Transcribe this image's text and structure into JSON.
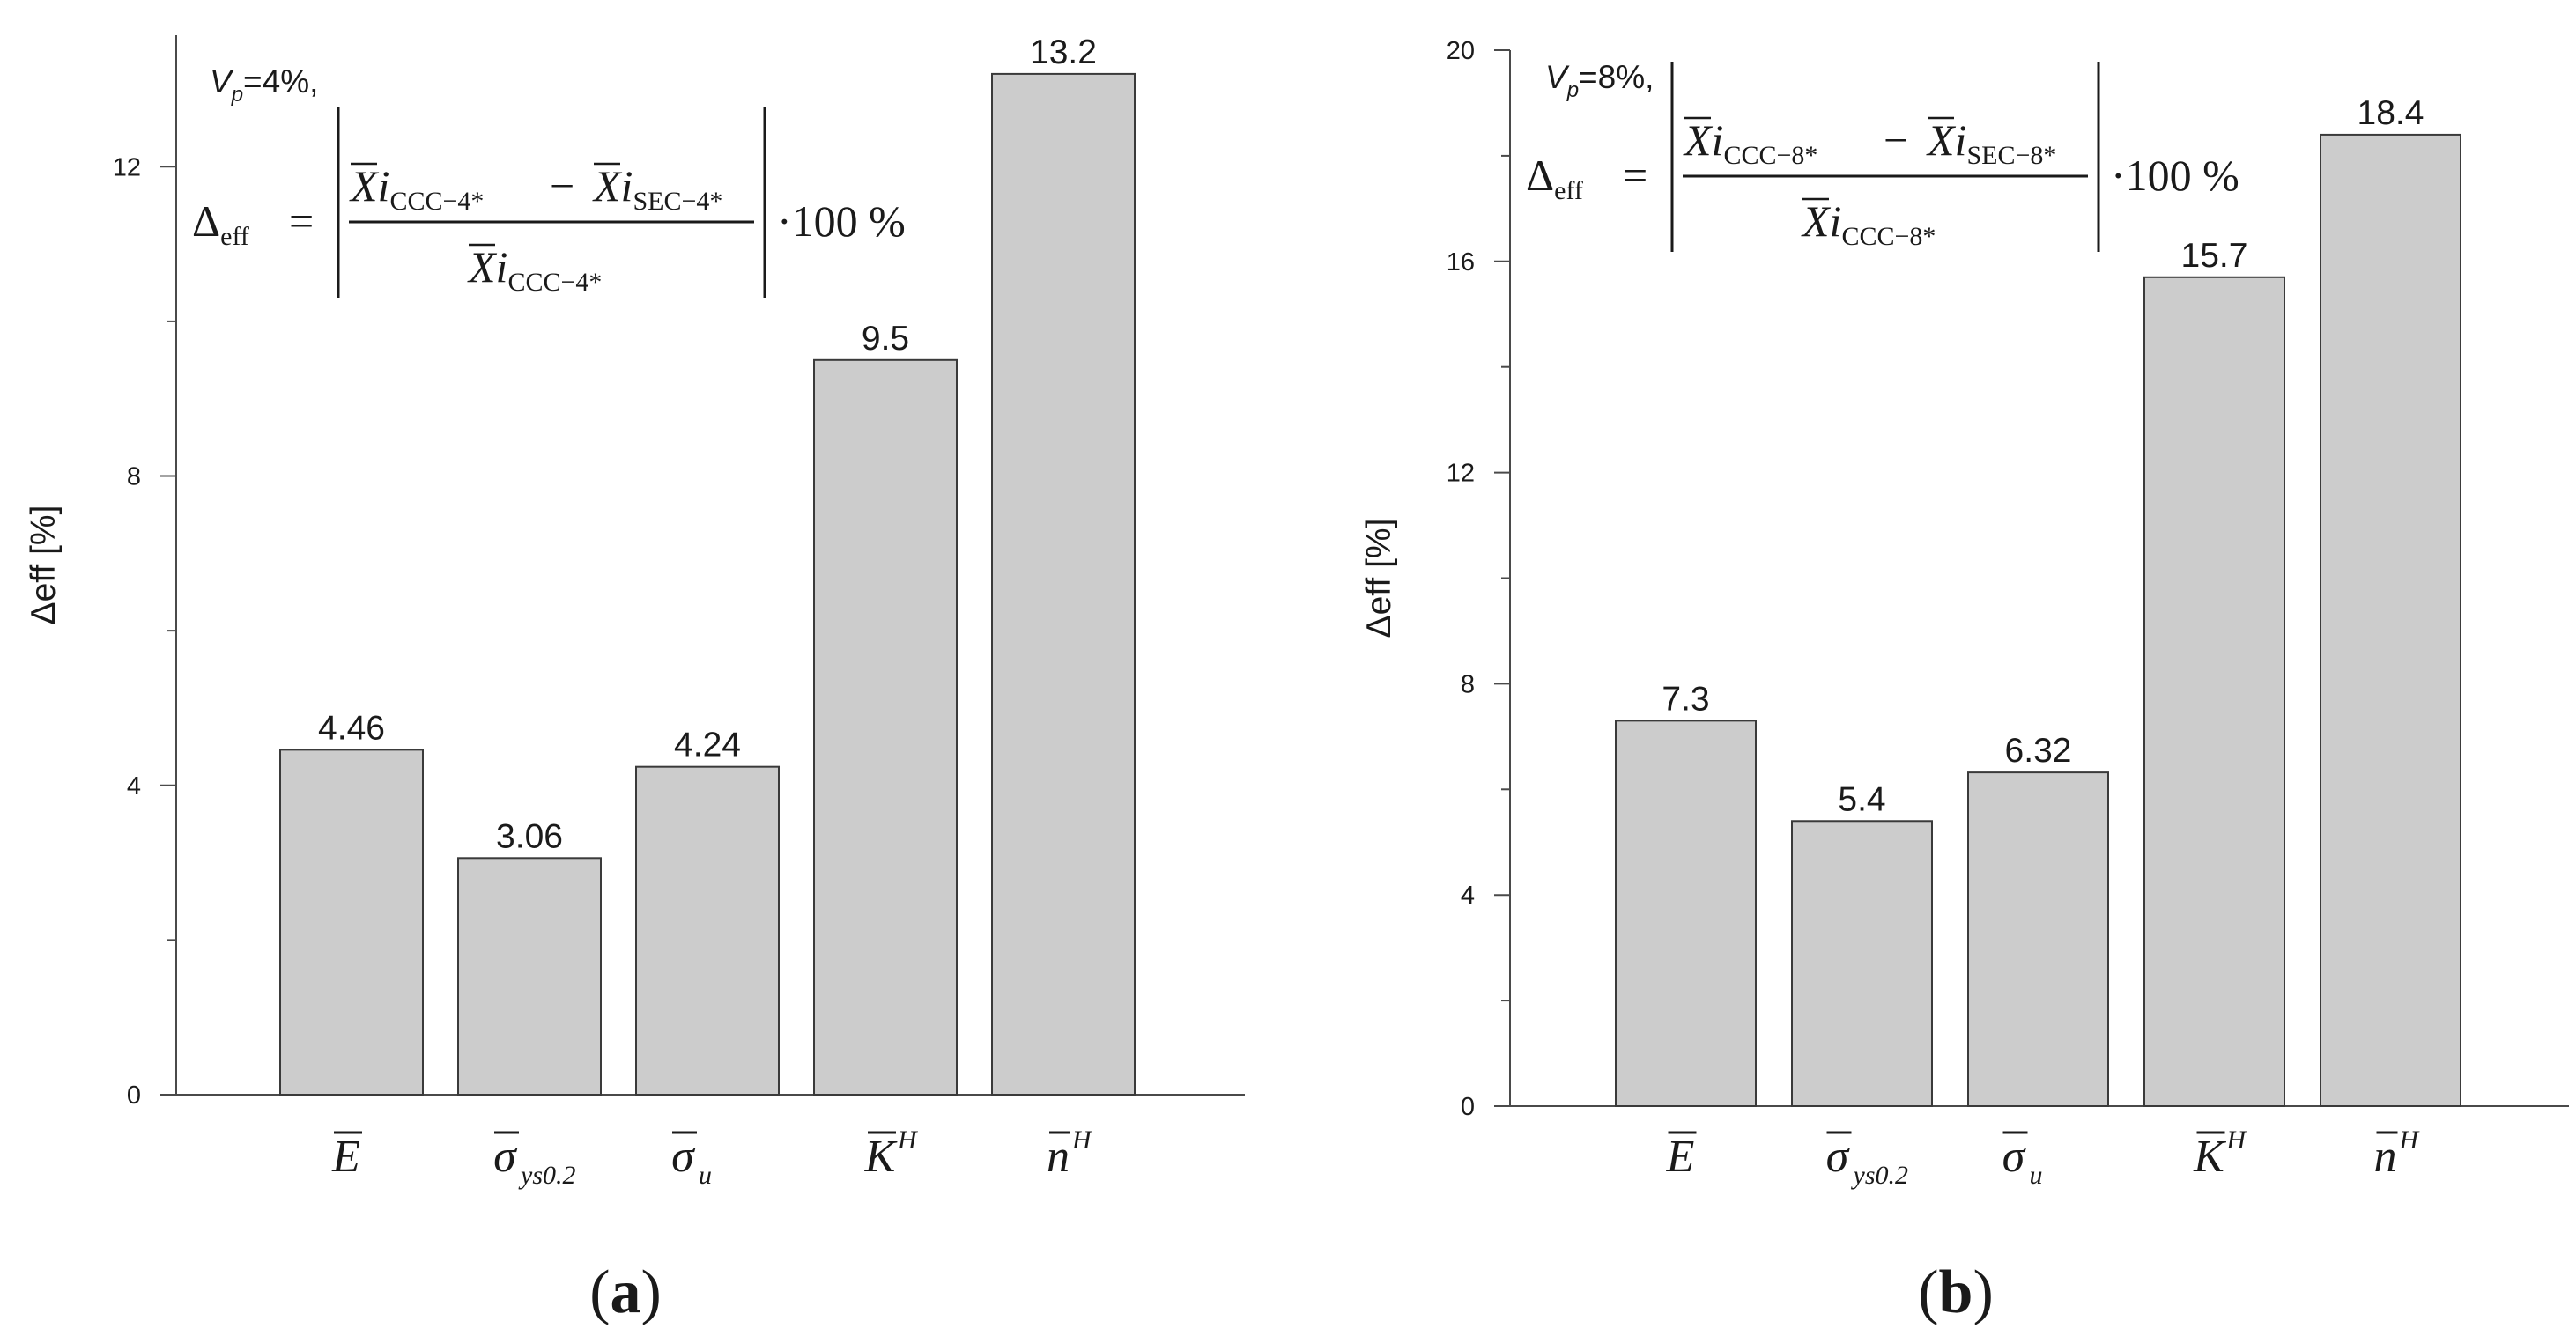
{
  "chart_data": [
    {
      "type": "bar",
      "panel_label": "a",
      "categories": [
        "E",
        "σ_ys0.2",
        "σ_u",
        "K^H",
        "n^H"
      ],
      "values": [
        4.46,
        3.06,
        4.24,
        9.5,
        13.2
      ],
      "value_labels": [
        "4.46",
        "3.06",
        "4.24",
        "9.5",
        "13.2"
      ],
      "ylabel": "Δeff [%]",
      "ylabel_delta": "Δ",
      "ylabel_rest": "eff [%]",
      "ylim": [
        0,
        13.7
      ],
      "yticks": [
        0,
        4,
        8,
        12
      ],
      "ytick_labels": [
        "0",
        "4",
        "8",
        "12"
      ],
      "annotation": {
        "vp_symbol": "V",
        "vp_sub": "p",
        "vp_value": "=4%,",
        "delta": "Δ",
        "delta_sub": "eff",
        "equals": "=",
        "xi": "Xi",
        "minus": "−",
        "num_left_sub": "CCC−4*",
        "num_right_sub": "SEC−4*",
        "den_sub": "CCC−4*",
        "factor": "·100 %"
      }
    },
    {
      "type": "bar",
      "panel_label": "b",
      "categories": [
        "E",
        "σ_ys0.2",
        "σ_u",
        "K^H",
        "n^H"
      ],
      "values": [
        7.3,
        5.4,
        6.32,
        15.7,
        18.4
      ],
      "value_labels": [
        "7.3",
        "5.4",
        "6.32",
        "15.7",
        "18.4"
      ],
      "ylabel": "Δeff [%]",
      "ylabel_delta": "Δ",
      "ylabel_rest": "eff [%]",
      "ylim": [
        0,
        20
      ],
      "yticks": [
        0,
        4,
        8,
        12,
        16,
        20
      ],
      "ytick_labels": [
        "0",
        "4",
        "8",
        "12",
        "16",
        "20"
      ],
      "annotation": {
        "vp_symbol": "V",
        "vp_sub": "p",
        "vp_value": "=8%,",
        "delta": "Δ",
        "delta_sub": "eff",
        "equals": "=",
        "xi": "Xi",
        "minus": "−",
        "num_left_sub": "CCC−8*",
        "num_right_sub": "SEC−8*",
        "den_sub": "CCC−8*",
        "factor": "·100 %"
      }
    }
  ],
  "category_symbols": [
    {
      "base": "E",
      "sub": "",
      "sup": "",
      "greek": false
    },
    {
      "base": "σ",
      "sub": "ys0.2",
      "sup": "",
      "greek": true
    },
    {
      "base": "σ",
      "sub": "u",
      "sup": "",
      "greek": true
    },
    {
      "base": "K",
      "sub": "",
      "sup": "H",
      "greek": false
    },
    {
      "base": "n",
      "sub": "",
      "sup": "H",
      "greek": false
    }
  ],
  "colors": {
    "bar_fill": "#cccccc",
    "bar_stroke": "#3a3a3a",
    "axis": "#4a4a4a",
    "text": "#1a1a1a"
  }
}
